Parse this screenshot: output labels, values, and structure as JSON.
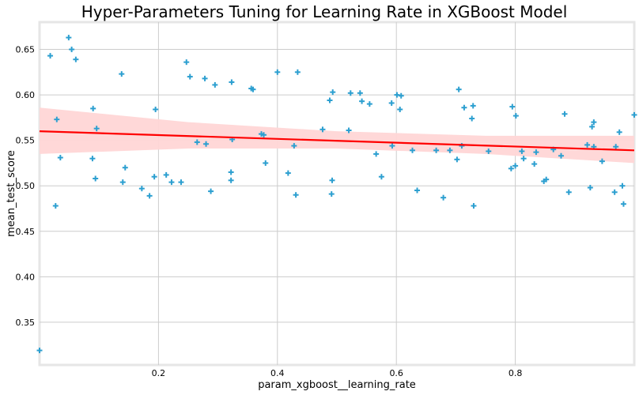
{
  "chart_data": {
    "type": "scatter",
    "title": "Hyper-Parameters Tuning for Learning Rate in XGBoost Model",
    "xlabel": "param_xgboost__learning_rate",
    "ylabel": "mean_test_score",
    "xlim": [
      0.0,
      1.0
    ],
    "ylim": [
      0.303,
      0.68
    ],
    "xticks": [
      0.2,
      0.4,
      0.6,
      0.8
    ],
    "xtick_labels": [
      "0.2",
      "0.4",
      "0.6",
      "0.8"
    ],
    "yticks": [
      0.35,
      0.4,
      0.45,
      0.5,
      0.55,
      0.6,
      0.65
    ],
    "ytick_labels": [
      "0.35",
      "0.40",
      "0.45",
      "0.50",
      "0.55",
      "0.60",
      "0.65"
    ],
    "grid": true,
    "marker": "+",
    "marker_color": "#2c9fd0",
    "regression": {
      "color": "#ff0000",
      "band_color": "#ffd6d6",
      "line": [
        [
          0.0,
          0.56
        ],
        [
          1.0,
          0.539
        ]
      ],
      "band_upper": [
        [
          0.0,
          0.586
        ],
        [
          0.25,
          0.57
        ],
        [
          0.5,
          0.56
        ],
        [
          0.75,
          0.555
        ],
        [
          1.0,
          0.555
        ]
      ],
      "band_lower": [
        [
          0.0,
          0.535
        ],
        [
          0.25,
          0.541
        ],
        [
          0.5,
          0.541
        ],
        [
          0.75,
          0.535
        ],
        [
          1.0,
          0.525
        ]
      ]
    },
    "x": [
      0.0,
      0.018,
      0.027,
      0.029,
      0.035,
      0.049,
      0.054,
      0.061,
      0.089,
      0.09,
      0.094,
      0.096,
      0.138,
      0.14,
      0.144,
      0.172,
      0.185,
      0.193,
      0.195,
      0.213,
      0.222,
      0.238,
      0.247,
      0.253,
      0.265,
      0.278,
      0.28,
      0.288,
      0.295,
      0.322,
      0.322,
      0.323,
      0.324,
      0.356,
      0.359,
      0.373,
      0.377,
      0.38,
      0.4,
      0.418,
      0.428,
      0.431,
      0.434,
      0.476,
      0.488,
      0.491,
      0.492,
      0.493,
      0.52,
      0.523,
      0.539,
      0.542,
      0.555,
      0.566,
      0.575,
      0.592,
      0.593,
      0.601,
      0.606,
      0.608,
      0.627,
      0.635,
      0.667,
      0.679,
      0.69,
      0.702,
      0.705,
      0.71,
      0.714,
      0.727,
      0.729,
      0.73,
      0.755,
      0.793,
      0.795,
      0.8,
      0.801,
      0.811,
      0.814,
      0.832,
      0.835,
      0.848,
      0.852,
      0.864,
      0.877,
      0.883,
      0.89,
      0.921,
      0.926,
      0.929,
      0.932,
      0.932,
      0.946,
      0.967,
      0.969,
      0.975,
      0.98,
      0.982,
      1.0
    ],
    "y": [
      0.319,
      0.643,
      0.478,
      0.573,
      0.531,
      0.663,
      0.65,
      0.639,
      0.53,
      0.585,
      0.508,
      0.563,
      0.623,
      0.504,
      0.52,
      0.497,
      0.489,
      0.51,
      0.584,
      0.512,
      0.504,
      0.504,
      0.636,
      0.62,
      0.548,
      0.618,
      0.546,
      0.494,
      0.611,
      0.506,
      0.515,
      0.614,
      0.551,
      0.607,
      0.606,
      0.557,
      0.556,
      0.525,
      0.625,
      0.514,
      0.544,
      0.49,
      0.625,
      0.562,
      0.594,
      0.491,
      0.506,
      0.603,
      0.561,
      0.602,
      0.602,
      0.593,
      0.59,
      0.535,
      0.51,
      0.591,
      0.544,
      0.6,
      0.584,
      0.599,
      0.539,
      0.495,
      0.539,
      0.487,
      0.539,
      0.529,
      0.606,
      0.544,
      0.586,
      0.574,
      0.588,
      0.478,
      0.538,
      0.519,
      0.587,
      0.522,
      0.577,
      0.538,
      0.53,
      0.524,
      0.537,
      0.505,
      0.507,
      0.54,
      0.533,
      0.579,
      0.493,
      0.545,
      0.498,
      0.565,
      0.57,
      0.543,
      0.527,
      0.493,
      0.543,
      0.559,
      0.5,
      0.48,
      0.578
    ]
  }
}
